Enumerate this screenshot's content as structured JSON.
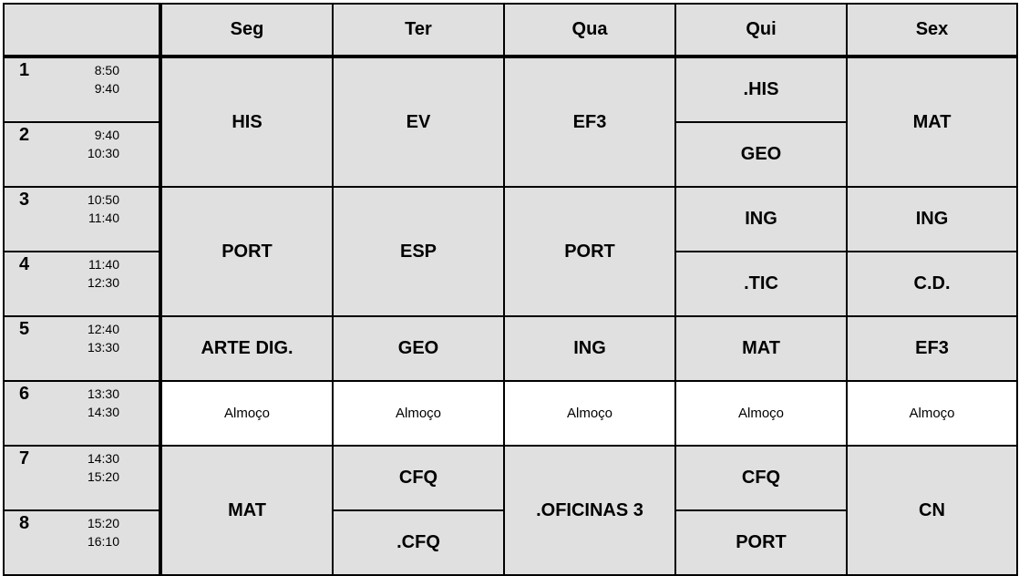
{
  "header": {
    "corner": "",
    "days": [
      "Seg",
      "Ter",
      "Qua",
      "Qui",
      "Sex"
    ]
  },
  "periods": [
    {
      "num": "1",
      "start": "8:50",
      "end": "9:40"
    },
    {
      "num": "2",
      "start": "9:40",
      "end": "10:30"
    },
    {
      "num": "3",
      "start": "10:50",
      "end": "11:40"
    },
    {
      "num": "4",
      "start": "11:40",
      "end": "12:30"
    },
    {
      "num": "5",
      "start": "12:40",
      "end": "13:30"
    },
    {
      "num": "6",
      "start": "13:30",
      "end": "14:30"
    },
    {
      "num": "7",
      "start": "14:30",
      "end": "15:20"
    },
    {
      "num": "8",
      "start": "15:20",
      "end": "16:10"
    }
  ],
  "schedule": [
    [
      {
        "label": "HIS",
        "span": 2
      },
      {
        "label": "PORT",
        "span": 2
      },
      {
        "label": "ARTE DIG.",
        "span": 1
      },
      {
        "label": "Almoço",
        "span": 1,
        "lunch": true
      },
      {
        "label": "MAT",
        "span": 2
      }
    ],
    [
      {
        "label": "EV",
        "span": 2
      },
      {
        "label": "ESP",
        "span": 2
      },
      {
        "label": "GEO",
        "span": 1
      },
      {
        "label": "Almoço",
        "span": 1,
        "lunch": true
      },
      {
        "label": "CFQ",
        "span": 1
      },
      {
        "label": ".CFQ",
        "span": 1
      }
    ],
    [
      {
        "label": "EF3",
        "span": 2
      },
      {
        "label": "PORT",
        "span": 2
      },
      {
        "label": "ING",
        "span": 1
      },
      {
        "label": "Almoço",
        "span": 1,
        "lunch": true
      },
      {
        "label": ".OFICINAS 3",
        "span": 2
      }
    ],
    [
      {
        "label": ".HIS",
        "span": 1
      },
      {
        "label": "GEO",
        "span": 1
      },
      {
        "label": "ING",
        "span": 1
      },
      {
        "label": ".TIC",
        "span": 1
      },
      {
        "label": "MAT",
        "span": 1
      },
      {
        "label": "Almoço",
        "span": 1,
        "lunch": true
      },
      {
        "label": "CFQ",
        "span": 1
      },
      {
        "label": "PORT",
        "span": 1
      }
    ],
    [
      {
        "label": "MAT",
        "span": 2
      },
      {
        "label": "ING",
        "span": 1
      },
      {
        "label": "C.D.",
        "span": 1
      },
      {
        "label": "EF3",
        "span": 1
      },
      {
        "label": "Almoço",
        "span": 1,
        "lunch": true
      },
      {
        "label": "CN",
        "span": 2
      }
    ]
  ],
  "colors": {
    "cell_bg": "#e0e0e0",
    "lunch_bg": "#ffffff",
    "border": "#000000"
  }
}
